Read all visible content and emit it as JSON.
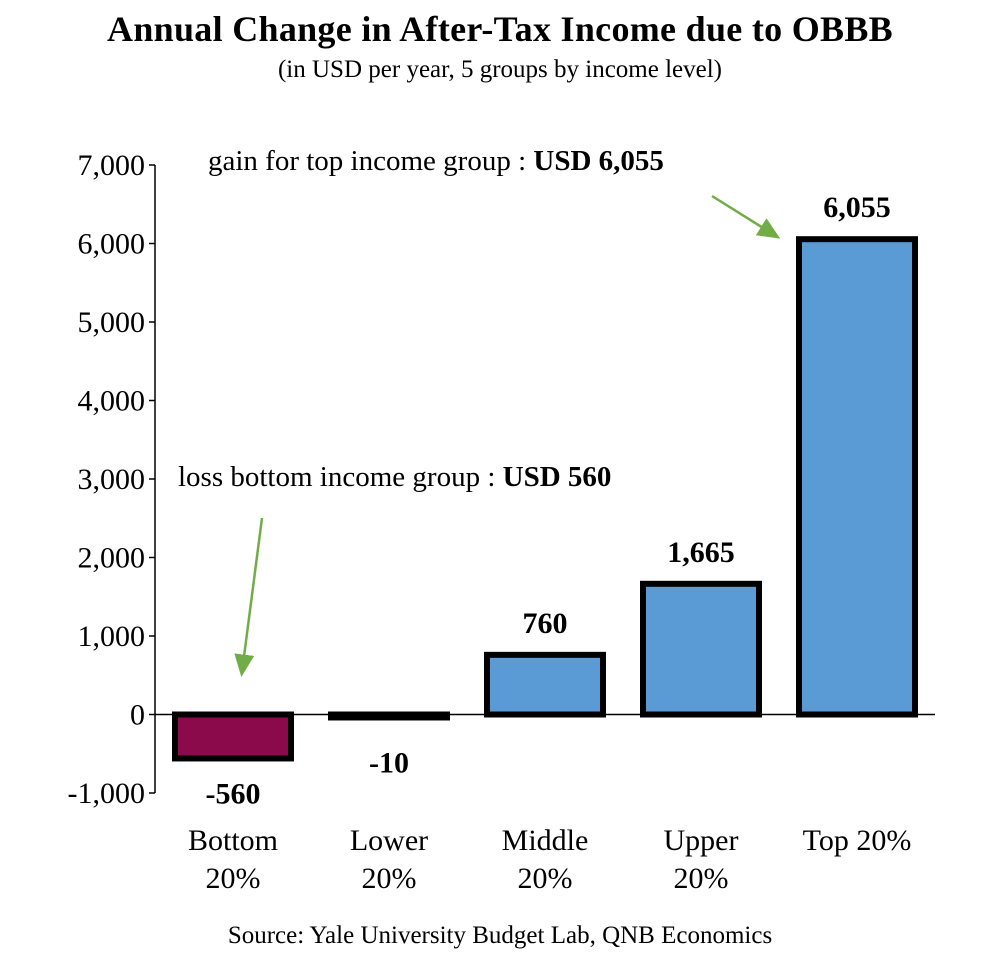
{
  "chart_data": {
    "type": "bar",
    "title": "Annual Change in After-Tax Income due to OBBB",
    "subtitle": "(in USD per year, 5 groups by income level)",
    "categories": [
      [
        "Bottom",
        "20%"
      ],
      [
        "Lower",
        "20%"
      ],
      [
        "Middle",
        "20%"
      ],
      [
        "Upper",
        "20%"
      ],
      [
        "Top 20%"
      ]
    ],
    "values": [
      -560,
      -10,
      760,
      1665,
      6055
    ],
    "data_labels": [
      "-560",
      "-10",
      "760",
      "1,665",
      "6,055"
    ],
    "bar_colors": [
      "#8b0a4b",
      "#5b9bd5",
      "#5b9bd5",
      "#5b9bd5",
      "#5b9bd5"
    ],
    "ylim": [
      -1000,
      7000
    ],
    "yticks": [
      -1000,
      0,
      1000,
      2000,
      3000,
      4000,
      5000,
      6000,
      7000
    ],
    "ytick_labels": [
      "-1,000",
      "0",
      "1,000",
      "2,000",
      "3,000",
      "4,000",
      "5,000",
      "6,000",
      "7,000"
    ],
    "grid": false,
    "annotations": [
      {
        "text": "gain  for top income group : ",
        "bold": "USD 6,055",
        "arrow_color": "#70ad47"
      },
      {
        "text": "loss bottom income group : ",
        "bold": "USD 560",
        "arrow_color": "#70ad47"
      }
    ],
    "source": "Source: Yale University Budget Lab, QNB Economics"
  }
}
